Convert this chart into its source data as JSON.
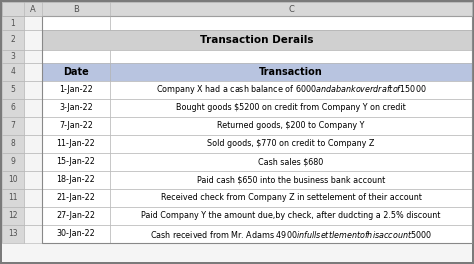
{
  "title": "Transaction Derails",
  "header": [
    "Date",
    "Transaction"
  ],
  "rows": [
    [
      "1-Jan-22",
      "Company X had a cash balance of $6000 and a bank overdraft of $15000"
    ],
    [
      "3-Jan-22",
      "Bought goods $5200 on credit from Company Y on credit"
    ],
    [
      "7-Jan-22",
      "Returned goods, $200 to Company Y"
    ],
    [
      "11-Jan-22",
      "Sold goods, $770 on credit to Company Z"
    ],
    [
      "15-Jan-22",
      "Cash sales $680"
    ],
    [
      "18-Jan-22",
      "Paid cash $650 into the business bank account"
    ],
    [
      "21-Jan-22",
      "Received check from Company Z in settelement of their account"
    ],
    [
      "27-Jan-22",
      "Paid Company Y the amount due,by check, after dudcting a 2.5% discount"
    ],
    [
      "30-Jan-22",
      "Cash received from Mr. Adams $4900 in full settlement of his account $5000"
    ]
  ],
  "header_bg": "#b8c4e0",
  "title_bg": "#d0d0d0",
  "grid_color": "#b0b0b0",
  "text_color": "#000000",
  "title_fontsize": 7.5,
  "header_fontsize": 7,
  "cell_fontsize": 5.8,
  "excel_header_bg": "#d8d8d8",
  "excel_header_color": "#505050",
  "fig_bg": "#c8c8c8",
  "outer_bg": "#7a7a7a"
}
